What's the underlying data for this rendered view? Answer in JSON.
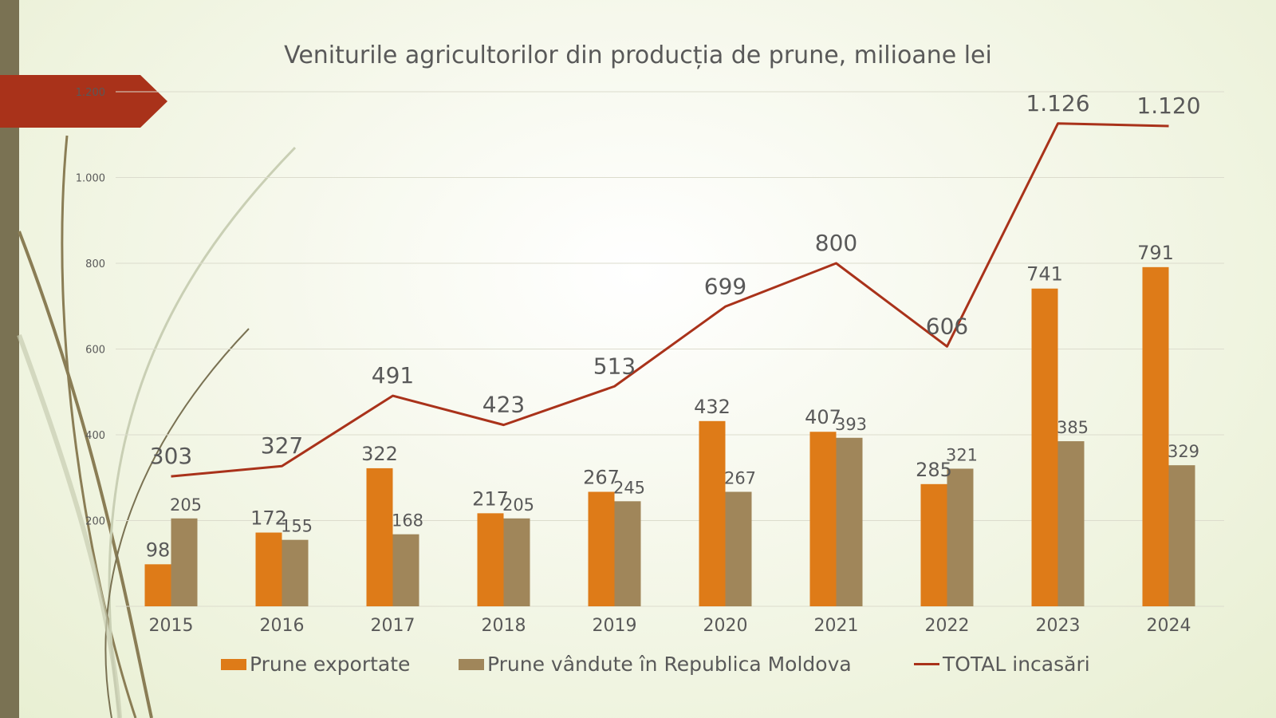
{
  "colors": {
    "exported": "#de7b18",
    "domestic": "#a0865a",
    "total": "#a9321a",
    "grid": "#dcdccd",
    "text": "#595959",
    "sidebar": "#7a7253",
    "arrow": "#a9321a"
  },
  "chart_data": {
    "type": "bar",
    "title": "Veniturile agricultorilor din producția de prune, milioane lei",
    "categories": [
      "2015",
      "2016",
      "2017",
      "2018",
      "2019",
      "2020",
      "2021",
      "2022",
      "2023",
      "2024"
    ],
    "ylim": [
      0,
      1200
    ],
    "yticks": [
      "1.200",
      "1.000",
      "800",
      "600",
      "400",
      "200"
    ],
    "ytick_values": [
      1200,
      1000,
      800,
      600,
      400,
      200
    ],
    "grid": true,
    "legend_position": "bottom",
    "series": [
      {
        "name": "Prune exportate",
        "type": "bar",
        "values": [
          98,
          172,
          322,
          217,
          267,
          432,
          407,
          285,
          741,
          791
        ],
        "labels": [
          "98",
          "172",
          "322",
          "217",
          "267",
          "432",
          "407",
          "285",
          "741",
          "791"
        ]
      },
      {
        "name": "Prune vândute în Republica Moldova",
        "type": "bar",
        "values": [
          205,
          155,
          168,
          205,
          245,
          267,
          393,
          321,
          385,
          329
        ],
        "labels": [
          "205",
          "155",
          "168",
          "205",
          "245",
          "267",
          "393",
          "321",
          "385",
          "329"
        ]
      },
      {
        "name": "TOTAL incasări",
        "type": "line",
        "values": [
          303,
          327,
          491,
          423,
          513,
          699,
          800,
          606,
          1126,
          1120
        ],
        "labels": [
          "303",
          "327",
          "491",
          "423",
          "513",
          "699",
          "800",
          "606",
          "1.126",
          "1.120"
        ]
      }
    ]
  }
}
